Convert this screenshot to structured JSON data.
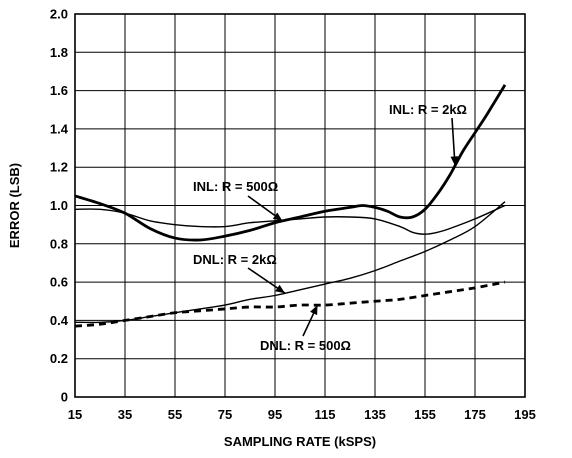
{
  "chart_data": {
    "type": "line",
    "xlabel": "SAMPLING RATE (kSPS)",
    "ylabel": "ERROR (LSB)",
    "xlim": [
      15,
      195
    ],
    "ylim": [
      0,
      2.0
    ],
    "x_ticks": [
      "15",
      "35",
      "55",
      "75",
      "95",
      "115",
      "135",
      "155",
      "175",
      "195"
    ],
    "y_ticks": [
      "0",
      "0.2",
      "0.4",
      "0.6",
      "0.8",
      "1.0",
      "1.2",
      "1.4",
      "1.6",
      "1.8",
      "2.0"
    ],
    "grid": true,
    "series": [
      {
        "name": "INL: R = 2kΩ",
        "style": "thick-solid",
        "x": [
          15,
          25,
          35,
          45,
          55,
          65,
          75,
          85,
          95,
          105,
          115,
          125,
          130,
          135,
          140,
          145,
          150,
          155,
          160,
          165,
          170,
          175,
          180,
          187
        ],
        "y": [
          1.05,
          1.01,
          0.96,
          0.88,
          0.83,
          0.82,
          0.84,
          0.87,
          0.91,
          0.94,
          0.97,
          0.99,
          1.0,
          0.99,
          0.97,
          0.94,
          0.94,
          0.98,
          1.06,
          1.16,
          1.28,
          1.38,
          1.48,
          1.63
        ]
      },
      {
        "name": "INL: R = 500Ω",
        "style": "thin-solid",
        "x": [
          15,
          25,
          35,
          45,
          55,
          65,
          75,
          85,
          95,
          105,
          115,
          125,
          135,
          145,
          150,
          155,
          160,
          165,
          175,
          187
        ],
        "y": [
          0.98,
          0.98,
          0.96,
          0.92,
          0.9,
          0.89,
          0.89,
          0.91,
          0.92,
          0.93,
          0.94,
          0.94,
          0.93,
          0.89,
          0.86,
          0.85,
          0.86,
          0.88,
          0.93,
          1.0
        ]
      },
      {
        "name": "DNL: R = 2kΩ",
        "style": "thin-solid",
        "x": [
          15,
          25,
          35,
          45,
          55,
          65,
          75,
          85,
          95,
          105,
          115,
          125,
          135,
          145,
          155,
          165,
          175,
          187
        ],
        "y": [
          0.39,
          0.39,
          0.4,
          0.42,
          0.44,
          0.46,
          0.48,
          0.51,
          0.53,
          0.56,
          0.59,
          0.62,
          0.66,
          0.71,
          0.76,
          0.82,
          0.89,
          1.02
        ]
      },
      {
        "name": "DNL: R = 500Ω",
        "style": "thick-dashed",
        "x": [
          15,
          25,
          35,
          45,
          55,
          65,
          75,
          85,
          95,
          105,
          115,
          125,
          135,
          145,
          155,
          165,
          175,
          187
        ],
        "y": [
          0.37,
          0.38,
          0.4,
          0.42,
          0.44,
          0.45,
          0.46,
          0.47,
          0.47,
          0.48,
          0.48,
          0.49,
          0.5,
          0.51,
          0.53,
          0.55,
          0.57,
          0.6
        ]
      }
    ],
    "annotations": [
      {
        "text": "INL: R = 2kΩ",
        "target_series": 0,
        "target_x": 167
      },
      {
        "text": "INL: R = 500Ω",
        "target_series": 0,
        "target_x": 98
      },
      {
        "text": "DNL: R = 2kΩ",
        "target_series": 2,
        "target_x": 99
      },
      {
        "text": "DNL: R = 500Ω",
        "target_series": 3,
        "target_x": 112
      }
    ]
  }
}
